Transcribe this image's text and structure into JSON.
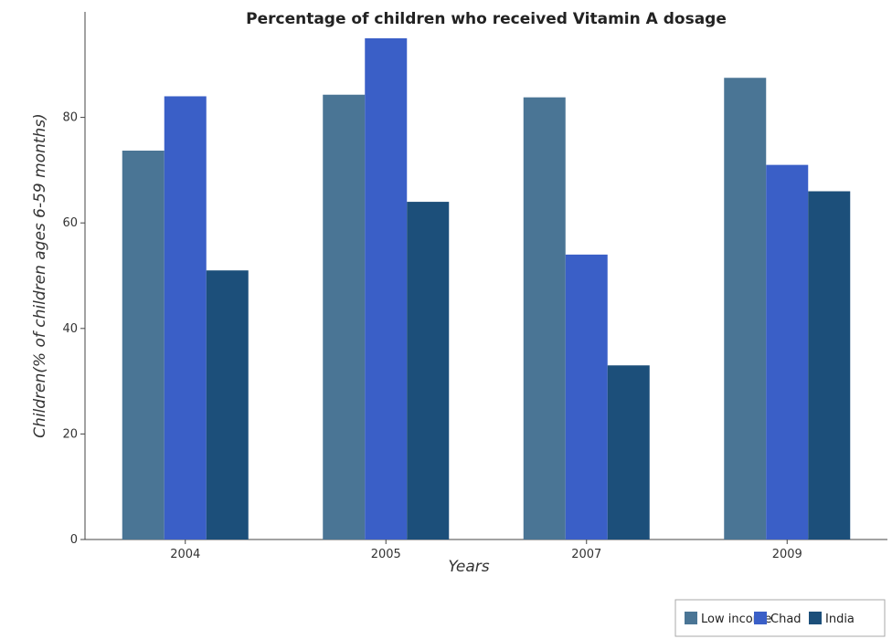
{
  "chart_data": {
    "type": "bar",
    "title": "Percentage of children who received Vitamin A dosage",
    "xlabel": "Years",
    "ylabel": "Children(% of children ages 6-59 months)",
    "categories": [
      "2004",
      "2005",
      "2007",
      "2009"
    ],
    "ylim": [
      0,
      100
    ],
    "yticks": [
      0,
      20,
      40,
      60,
      80
    ],
    "grid": false,
    "legend_position": "bottom-right",
    "series": [
      {
        "name": "Low income",
        "color": "#4a7595",
        "values": [
          73.7,
          84.3,
          83.8,
          87.5
        ]
      },
      {
        "name": "Chad",
        "color": "#3a5fc7",
        "values": [
          84,
          95,
          54,
          71
        ]
      },
      {
        "name": "India",
        "color": "#1c4f7a",
        "values": [
          51,
          64,
          33,
          66
        ]
      }
    ]
  }
}
